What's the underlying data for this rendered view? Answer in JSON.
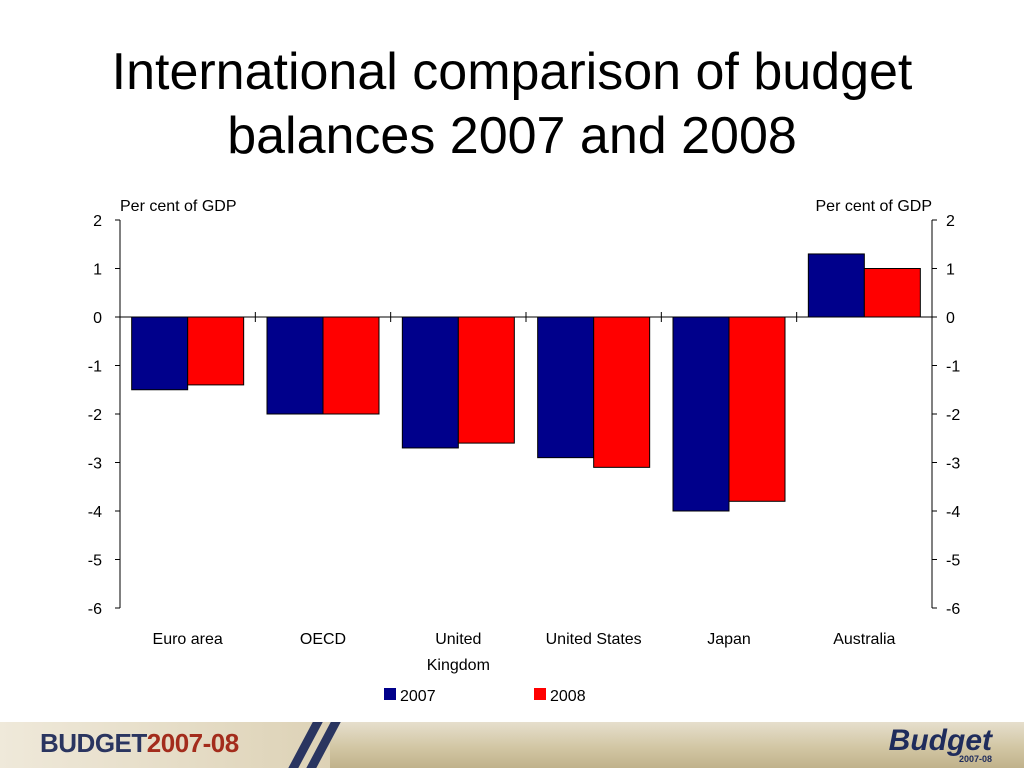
{
  "slide": {
    "title_line1": "International comparison of budget",
    "title_line2": "balances 2007 and 2008"
  },
  "chart_data": {
    "type": "bar",
    "left_axis_label": "Per cent of GDP",
    "right_axis_label": "Per cent of GDP",
    "categories": [
      [
        "Euro area"
      ],
      [
        "OECD"
      ],
      [
        "United",
        "Kingdom"
      ],
      [
        "United States"
      ],
      [
        "Japan"
      ],
      [
        "Australia"
      ]
    ],
    "series": [
      {
        "name": "2007",
        "color": "#00008b",
        "values": [
          -1.5,
          -2.0,
          -2.7,
          -2.9,
          -4.0,
          1.3
        ]
      },
      {
        "name": "2008",
        "color": "#ff0000",
        "values": [
          -1.4,
          -2.0,
          -2.6,
          -3.1,
          -3.8,
          1.0
        ]
      }
    ],
    "ylim": [
      -6,
      2
    ],
    "yticks": [
      2,
      1,
      0,
      -1,
      -2,
      -3,
      -4,
      -5,
      -6
    ],
    "grid": false,
    "legend_position": "bottom"
  },
  "footer": {
    "brand_part1": "BUDGET",
    "brand_part2": "2007-08",
    "logo_text": "Budget",
    "logo_sub": "2007-08"
  }
}
